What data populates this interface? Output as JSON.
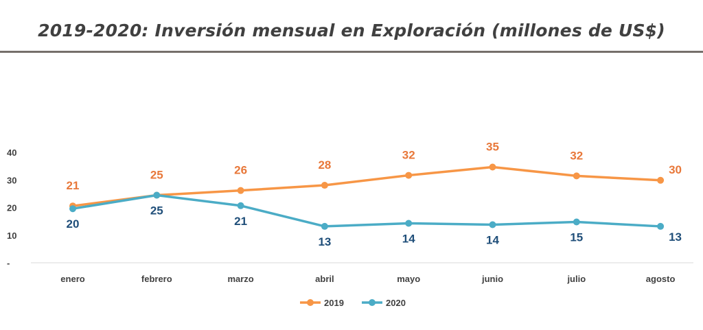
{
  "title": "2019-2020: Inversión mensual en Exploración (millones de US$)",
  "chart_data": {
    "type": "line",
    "categories": [
      "enero",
      "febrero",
      "marzo",
      "abril",
      "mayo",
      "junio",
      "julio",
      "agosto"
    ],
    "y_ticks": [
      "-",
      "10",
      "20",
      "30",
      "40"
    ],
    "ylim": [
      0,
      40
    ],
    "grid": false,
    "legend_position": "bottom",
    "series": [
      {
        "name": "2019",
        "color": "#f79646",
        "label_color": "#e8783a",
        "values": [
          20.6,
          24.5,
          26.2,
          28.1,
          31.7,
          34.7,
          31.5,
          29.9
        ],
        "labels": [
          "21",
          "25",
          "26",
          "28",
          "32",
          "35",
          "32",
          "30"
        ]
      },
      {
        "name": "2020",
        "color": "#4bacc6",
        "label_color": "#1f4e79",
        "values": [
          19.6,
          24.5,
          20.7,
          13.2,
          14.3,
          13.8,
          14.8,
          13.2
        ],
        "labels": [
          "20",
          "25",
          "21",
          "13",
          "14",
          "14",
          "15",
          "13"
        ]
      }
    ]
  }
}
